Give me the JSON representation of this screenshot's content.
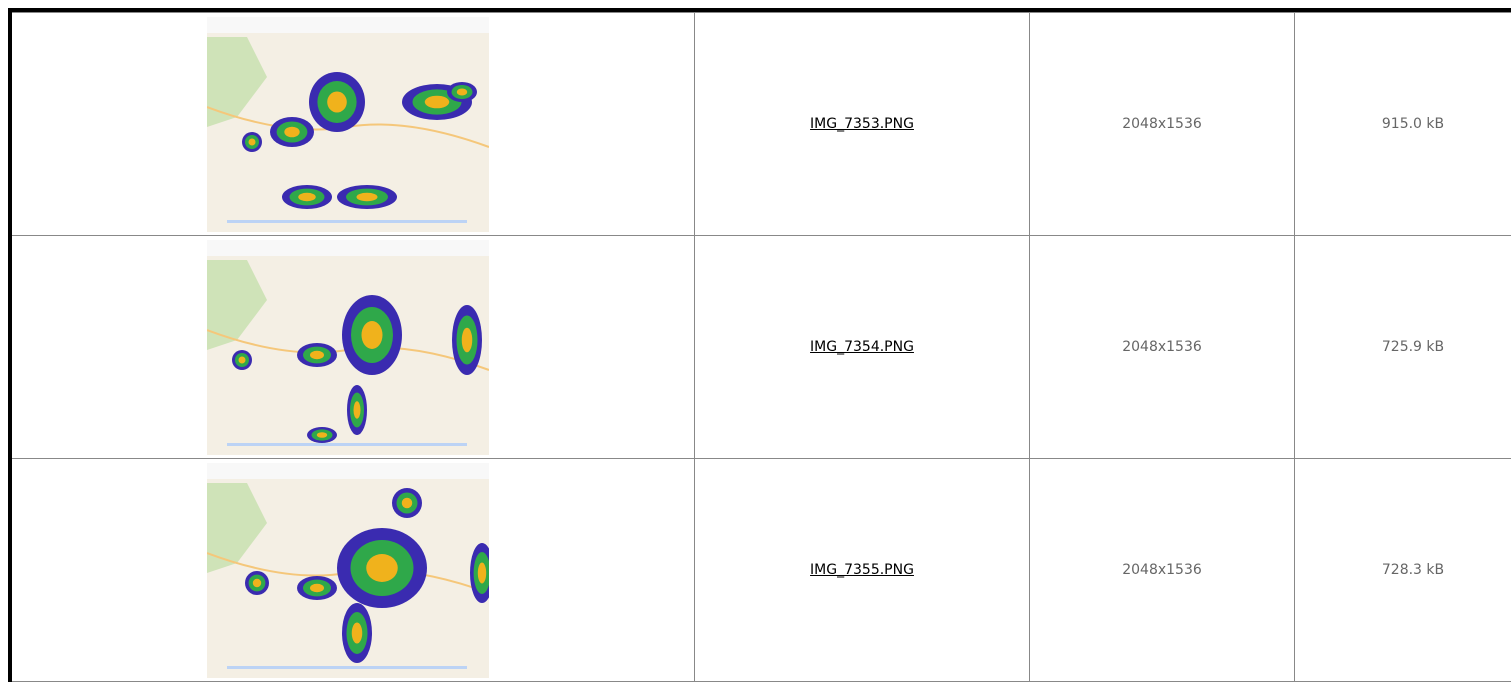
{
  "table": {
    "rows": [
      {
        "name": "IMG_7353.PNG",
        "dimensions": "2048x1536",
        "size": "915.0 kB"
      },
      {
        "name": "IMG_7354.PNG",
        "dimensions": "2048x1536",
        "size": "725.9 kB"
      },
      {
        "name": "IMG_7355.PNG",
        "dimensions": "2048x1536",
        "size": "728.3 kB"
      }
    ]
  }
}
